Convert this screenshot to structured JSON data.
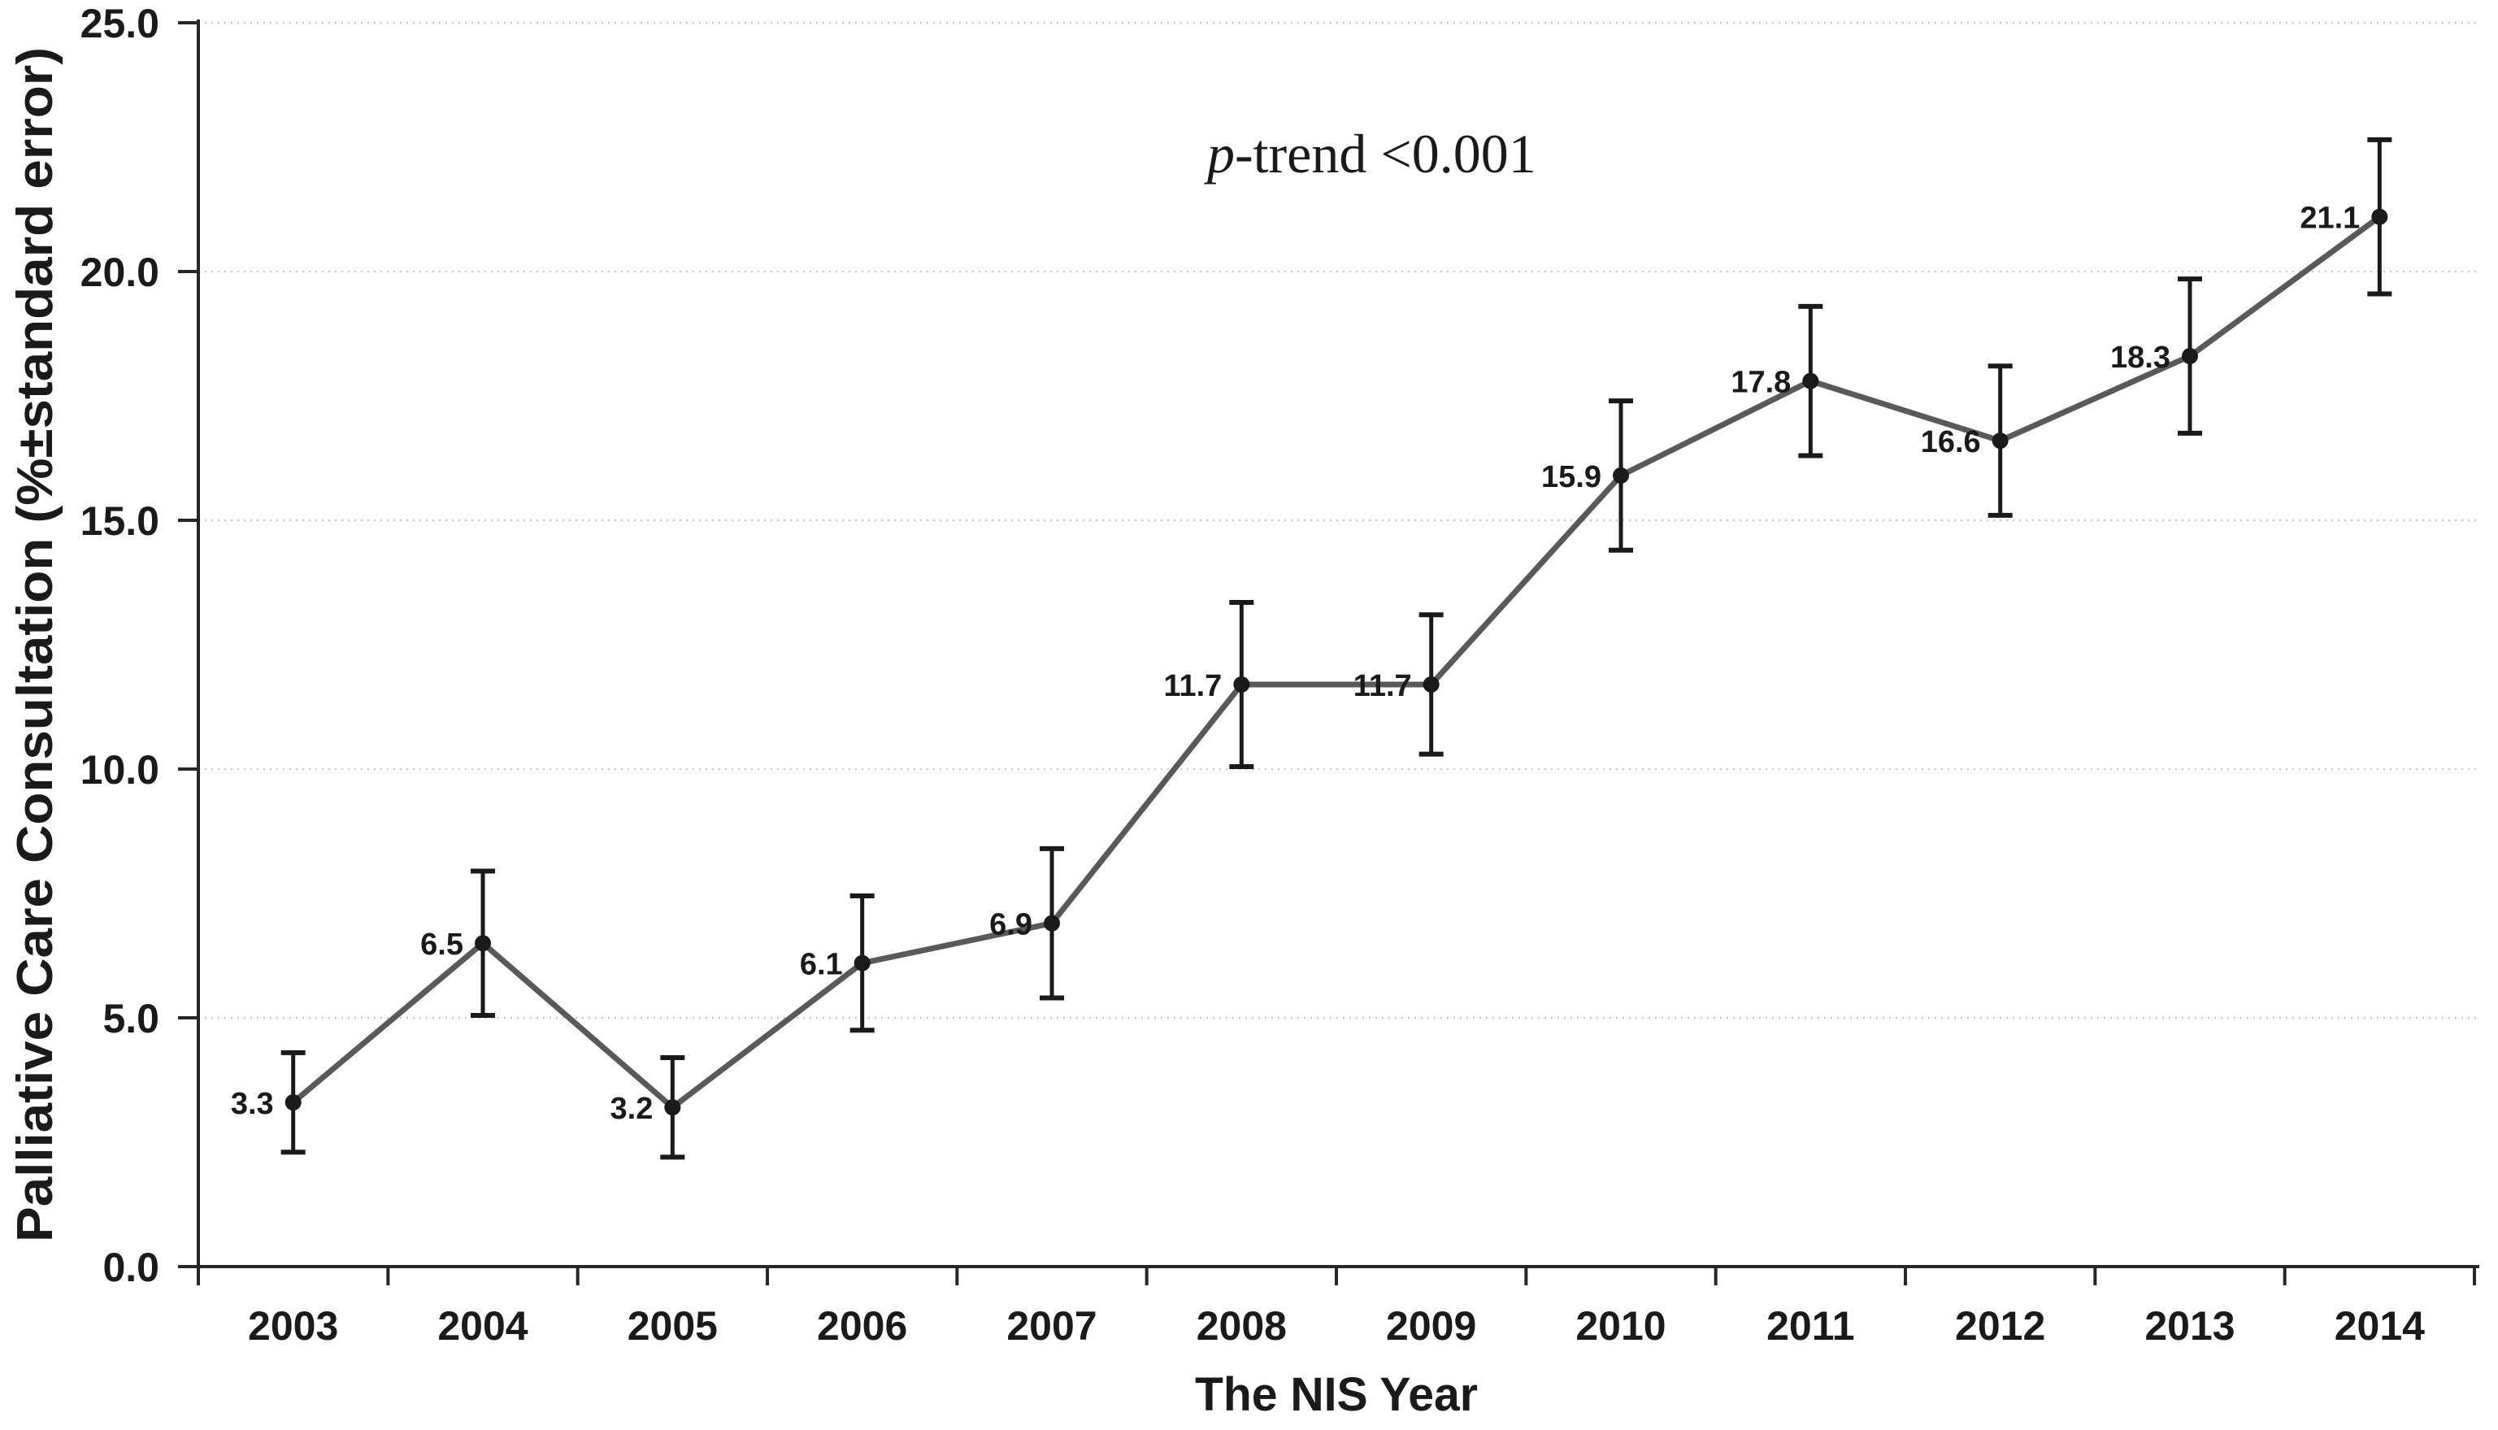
{
  "figure": {
    "background": "#ffffff"
  },
  "chart_data": {
    "type": "line",
    "title": "",
    "categories": [
      "2003",
      "2004",
      "2005",
      "2006",
      "2007",
      "2008",
      "2009",
      "2010",
      "2011",
      "2012",
      "2013",
      "2014"
    ],
    "series": [
      {
        "name": "Palliative Care Consultation",
        "values": [
          3.3,
          6.5,
          3.2,
          6.1,
          6.9,
          11.7,
          11.7,
          15.9,
          17.8,
          16.6,
          18.3,
          21.1
        ],
        "standard_errors": [
          1.0,
          1.45,
          1.0,
          1.35,
          1.5,
          1.65,
          1.4,
          1.5,
          1.5,
          1.5,
          1.55,
          1.55
        ],
        "data_labels": [
          "3.3",
          "6.5",
          "3.2",
          "6.1",
          "6.9",
          "11.7",
          "11.7",
          "15.9",
          "17.8",
          "16.6",
          "18.3",
          "21.1"
        ]
      }
    ],
    "xlabel": "The NIS Year",
    "ylabel": "Palliative Care Consultation (%±standard error)",
    "ylim": [
      0,
      25
    ],
    "ytick_step": 5,
    "ytick_labels": [
      "0.0",
      "5.0",
      "10.0",
      "15.0",
      "20.0",
      "25.0"
    ],
    "grid": "horizontal dotted light",
    "legend": "none",
    "annotation": {
      "italic": "p",
      "text": "-trend <0.001"
    }
  },
  "colors": {
    "line": "#58595b",
    "marker": "#1a1a1a",
    "error_bar": "#1a1a1a",
    "axis": "#262626",
    "grid": "#cbcbcb",
    "text": "#1a1a1a"
  }
}
